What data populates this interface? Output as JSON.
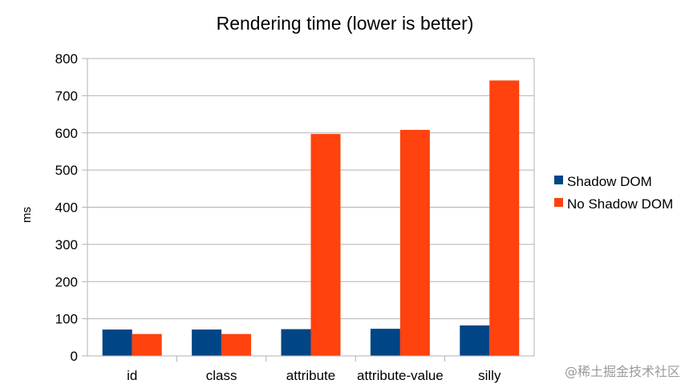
{
  "chart_data": {
    "type": "bar",
    "title": "Rendering time (lower is better)",
    "xlabel": "",
    "ylabel": "ms",
    "ylim": [
      0,
      800
    ],
    "yticks": [
      0,
      100,
      200,
      300,
      400,
      500,
      600,
      700,
      800
    ],
    "categories": [
      "id",
      "class",
      "attribute",
      "attribute-value",
      "silly"
    ],
    "series": [
      {
        "name": "Shadow DOM",
        "color": "#004586",
        "values": [
          71,
          71,
          72,
          73,
          82
        ]
      },
      {
        "name": "No Shadow DOM",
        "color": "#ff420e",
        "values": [
          59,
          59,
          597,
          608,
          741
        ]
      }
    ],
    "grid": true,
    "legend": "right"
  },
  "watermark": "@稀土掘金技术社区"
}
